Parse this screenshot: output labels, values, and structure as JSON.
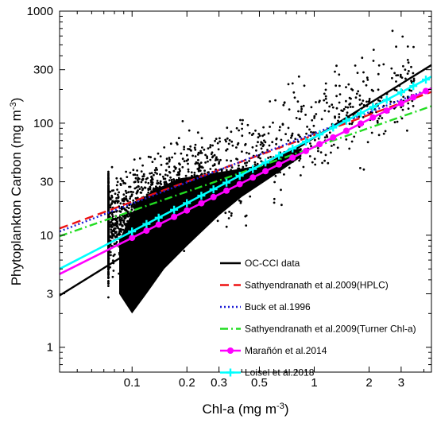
{
  "chart_data": {
    "type": "scatter",
    "title": "",
    "xlabel": "Chl-a (mg m",
    "xlabel_sup": "-3",
    "xlabel_close": ")",
    "ylabel": "Phytoplankton Carbon (mg m",
    "ylabel_sup": "-3",
    "ylabel_close": ")",
    "x_scale": "log",
    "y_scale": "log",
    "xlim": [
      0.04,
      4.4
    ],
    "ylim": [
      0.6,
      1000
    ],
    "x_ticks": [
      0.1,
      0.2,
      0.3,
      0.5,
      1,
      2,
      3
    ],
    "x_tick_labels": [
      "0.1",
      "0.2",
      "0.3",
      "0.5",
      "1",
      "2",
      "3"
    ],
    "y_ticks": [
      1,
      3,
      10,
      30,
      100,
      300,
      1000
    ],
    "y_tick_labels": [
      "1",
      "3",
      "10",
      "30",
      "100",
      "300",
      "1000"
    ],
    "grid": false,
    "legend_position": "bottom-right",
    "scatter_color": "#000000",
    "series": [
      {
        "name": "OC-CCI data",
        "color": "#000000",
        "style": "solid",
        "marker": "none",
        "x": [
          0.04,
          4.4
        ],
        "y": [
          2.9,
          330
        ]
      },
      {
        "name": "Sathyendranath et al.2009(HPLC)",
        "color": "#ee1111",
        "style": "dashed",
        "marker": "none",
        "x": [
          0.04,
          4.4
        ],
        "y": [
          11.5,
          190
        ]
      },
      {
        "name": "Buck et al.1996",
        "color": "#1c1cd6",
        "style": "dotted",
        "marker": "none",
        "x": [
          0.04,
          4.4
        ],
        "y": [
          10.8,
          205
        ]
      },
      {
        "name": "Sathyendranath et al.2009(Turner Chl-a)",
        "color": "#22dd22",
        "style": "dashdot",
        "marker": "none",
        "x": [
          0.04,
          4.4
        ],
        "y": [
          9.8,
          142
        ]
      },
      {
        "name": "Marañón et al.2014",
        "color": "#ff00ff",
        "style": "solid",
        "marker": "circle",
        "x": [
          0.04,
          4.4
        ],
        "y": [
          4.5,
          205
        ],
        "marker_x": [
          0.1,
          0.12,
          0.14,
          0.17,
          0.2,
          0.24,
          0.28,
          0.33,
          0.39,
          0.46,
          0.54,
          0.64,
          0.76,
          0.9,
          1.07,
          1.27,
          1.5,
          1.8,
          2.1,
          2.5,
          3.0,
          3.5,
          4.1
        ]
      },
      {
        "name": "Loisel et al.2018",
        "color": "#00ffff",
        "style": "solid",
        "marker": "plus",
        "x": [
          0.04,
          4.4
        ],
        "y": [
          5.0,
          260
        ],
        "marker_x": [
          0.1,
          0.12,
          0.14,
          0.17,
          0.2,
          0.24,
          0.28,
          0.33,
          0.39,
          0.46,
          0.54,
          0.64,
          0.76,
          0.9,
          1.07,
          1.27,
          1.5,
          1.8,
          2.1,
          2.5,
          3.0,
          3.5,
          4.1
        ]
      }
    ]
  }
}
